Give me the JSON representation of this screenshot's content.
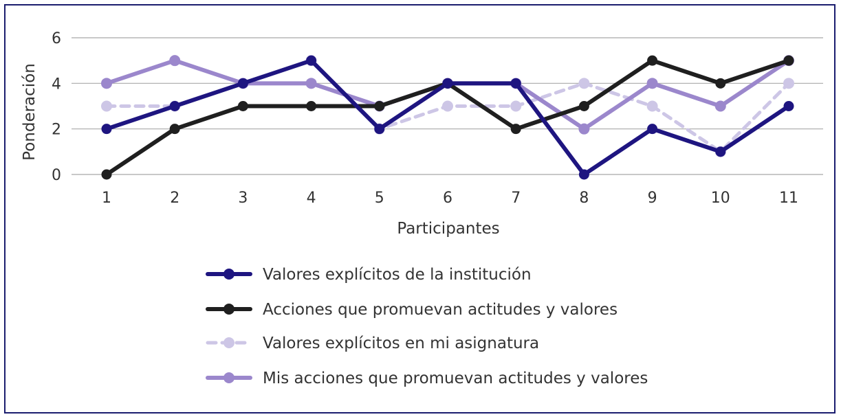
{
  "chart_data": {
    "type": "line",
    "title": "",
    "xlabel": "Participantes",
    "ylabel": "Ponderación",
    "ylim": [
      0,
      6
    ],
    "yticks": [
      0,
      2,
      4,
      6
    ],
    "grid": true,
    "legend_position": "bottom",
    "x": [
      1,
      2,
      3,
      4,
      5,
      6,
      7,
      8,
      9,
      10,
      11
    ],
    "x_tick_labels": [
      "1",
      "2",
      "3",
      "4",
      "5",
      "6",
      "7",
      "8",
      "9",
      "10",
      "11"
    ],
    "y_tick_labels": [
      "0",
      "2",
      "4",
      "6"
    ],
    "series": [
      {
        "name": "Valores explícitos de la institución",
        "values": [
          2,
          3,
          4,
          5,
          2,
          4,
          4,
          0,
          2,
          1,
          3
        ],
        "color": "#1e1580",
        "style": "solid"
      },
      {
        "name": "Acciones que promuevan actitudes y valores",
        "values": [
          0,
          2,
          3,
          3,
          3,
          4,
          2,
          3,
          5,
          4,
          5
        ],
        "color": "#1f1f1f",
        "style": "solid"
      },
      {
        "name": "Valores explícitos en mi asignatura",
        "values": [
          3,
          3,
          4,
          5,
          2,
          3,
          3,
          4,
          3,
          1,
          4
        ],
        "color": "#cdc6e6",
        "style": "dashed"
      },
      {
        "name": "Mis acciones que promuevan actitudes y valores",
        "values": [
          4,
          5,
          4,
          4,
          3,
          4,
          4,
          2,
          4,
          3,
          5
        ],
        "color": "#9b87cc",
        "style": "solid"
      }
    ]
  }
}
